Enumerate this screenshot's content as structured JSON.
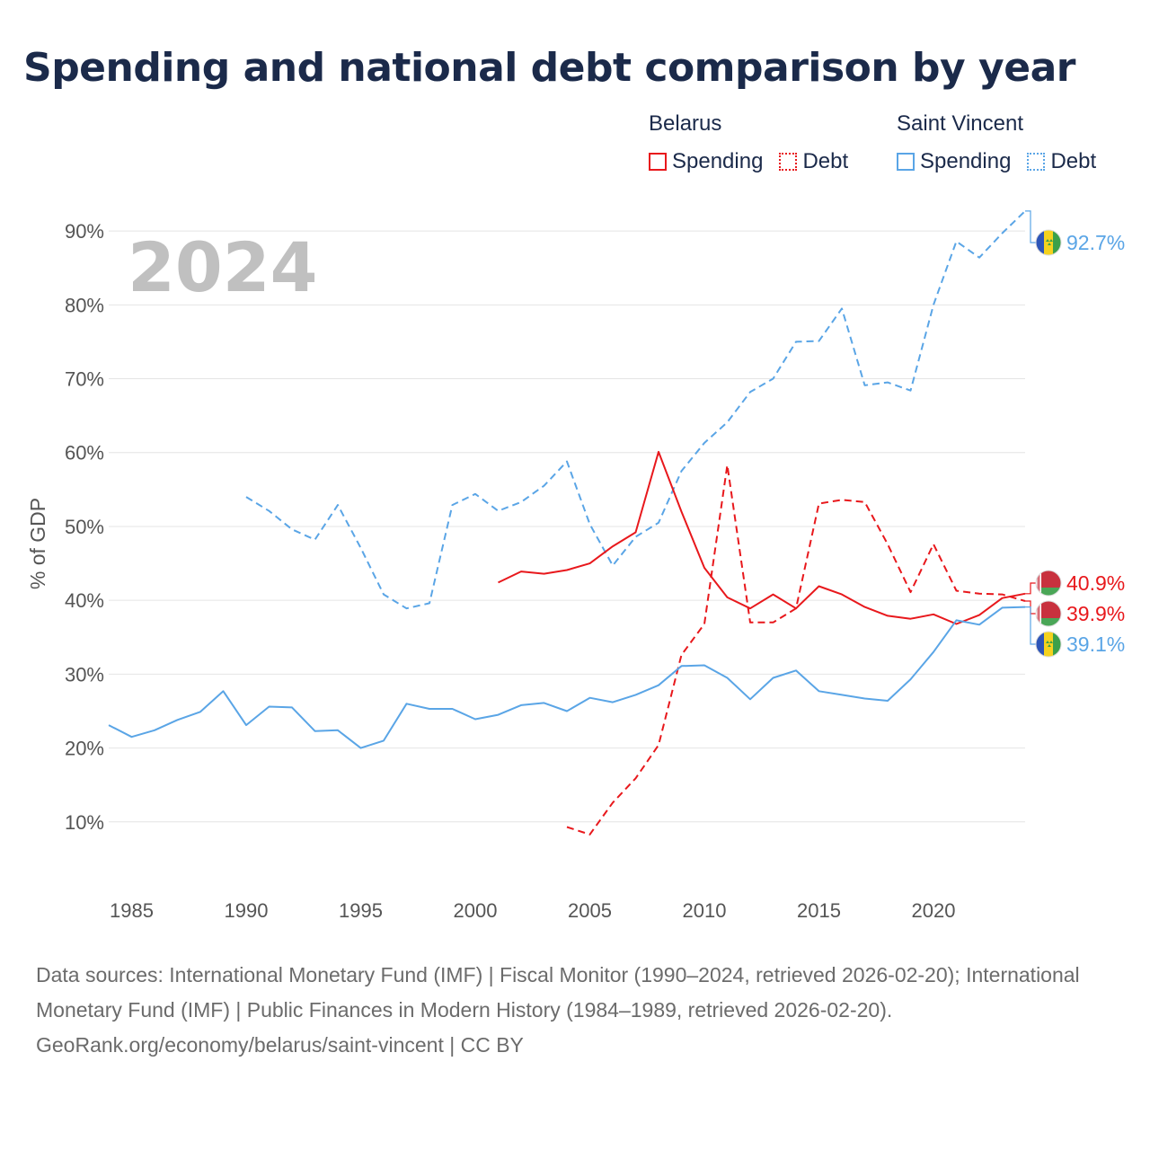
{
  "title": "Spending and national debt comparison by year",
  "legend": {
    "groups": [
      {
        "name": "Belarus",
        "color": "#e8181c",
        "items": [
          {
            "label": "Spending",
            "style": "solid"
          },
          {
            "label": "Debt",
            "style": "dotted"
          }
        ]
      },
      {
        "name": "Saint Vincent",
        "color": "#5aa5e6",
        "items": [
          {
            "label": "Spending",
            "style": "solid"
          },
          {
            "label": "Debt",
            "style": "dotted"
          }
        ]
      }
    ]
  },
  "year_label": "2024",
  "chart_data": {
    "type": "line",
    "title": "Spending and national debt comparison by year",
    "xlabel": "",
    "ylabel": "% of GDP",
    "xlim": [
      1984,
      2024
    ],
    "ylim": [
      0,
      95
    ],
    "x_ticks": [
      1985,
      1990,
      1995,
      2000,
      2005,
      2010,
      2015,
      2020
    ],
    "y_ticks": [
      10,
      20,
      30,
      40,
      50,
      60,
      70,
      80,
      90
    ],
    "y_tick_labels": [
      "10%",
      "20%",
      "30%",
      "40%",
      "50%",
      "60%",
      "70%",
      "80%",
      "90%"
    ],
    "series": [
      {
        "name": "Saint Vincent Debt",
        "country": "Saint Vincent",
        "measure": "Debt",
        "color": "#5aa5e6",
        "dash": true,
        "end_label": "92.7%",
        "flag": "saint-vincent",
        "x": [
          1990,
          1991,
          1992,
          1993,
          1994,
          1995,
          1996,
          1997,
          1998,
          1999,
          2000,
          2001,
          2002,
          2003,
          2004,
          2005,
          2006,
          2007,
          2008,
          2009,
          2010,
          2011,
          2012,
          2013,
          2014,
          2015,
          2016,
          2017,
          2018,
          2019,
          2020,
          2021,
          2022,
          2023,
          2024
        ],
        "values": [
          54.0,
          52.1,
          49.6,
          48.2,
          52.9,
          47.1,
          40.8,
          38.9,
          39.6,
          52.9,
          54.4,
          52.1,
          53.3,
          55.5,
          58.8,
          50.3,
          44.7,
          48.6,
          50.5,
          57.5,
          61.3,
          64.1,
          68.2,
          70.0,
          75.0,
          75.1,
          79.5,
          69.1,
          69.5,
          68.4,
          80.0,
          88.6,
          86.4,
          89.7,
          92.7
        ]
      },
      {
        "name": "Belarus Spending",
        "country": "Belarus",
        "measure": "Spending",
        "color": "#e8181c",
        "dash": false,
        "end_label": "40.9%",
        "flag": "belarus",
        "x": [
          2001,
          2002,
          2003,
          2004,
          2005,
          2006,
          2007,
          2008,
          2009,
          2010,
          2011,
          2012,
          2013,
          2014,
          2015,
          2016,
          2017,
          2018,
          2019,
          2020,
          2021,
          2022,
          2023,
          2024
        ],
        "values": [
          42.4,
          43.9,
          43.6,
          44.1,
          45.0,
          47.3,
          49.2,
          60.1,
          52.0,
          44.4,
          40.4,
          38.9,
          40.8,
          38.9,
          41.9,
          40.8,
          39.1,
          37.9,
          37.5,
          38.1,
          36.8,
          38.0,
          40.3,
          40.9
        ]
      },
      {
        "name": "Belarus Debt",
        "country": "Belarus",
        "measure": "Debt",
        "color": "#e8181c",
        "dash": true,
        "end_label": "39.9%",
        "flag": "belarus",
        "x": [
          2004,
          2005,
          2006,
          2007,
          2008,
          2009,
          2010,
          2011,
          2012,
          2013,
          2014,
          2015,
          2016,
          2017,
          2018,
          2019,
          2020,
          2021,
          2022,
          2023,
          2024
        ],
        "values": [
          9.3,
          8.3,
          12.6,
          15.9,
          20.4,
          32.6,
          36.8,
          58.3,
          37.0,
          37.0,
          38.9,
          53.1,
          53.6,
          53.3,
          47.6,
          41.1,
          47.6,
          41.3,
          40.9,
          40.8,
          39.9
        ]
      },
      {
        "name": "Saint Vincent Spending",
        "country": "Saint Vincent",
        "measure": "Spending",
        "color": "#5aa5e6",
        "dash": false,
        "end_label": "39.1%",
        "flag": "saint-vincent",
        "x": [
          1984,
          1985,
          1986,
          1987,
          1988,
          1989,
          1990,
          1991,
          1992,
          1993,
          1994,
          1995,
          1996,
          1997,
          1998,
          1999,
          2000,
          2001,
          2002,
          2003,
          2004,
          2005,
          2006,
          2007,
          2008,
          2009,
          2010,
          2011,
          2012,
          2013,
          2014,
          2015,
          2016,
          2017,
          2018,
          2019,
          2020,
          2021,
          2022,
          2023,
          2024
        ],
        "values": [
          23.1,
          21.5,
          22.4,
          23.8,
          24.9,
          27.7,
          23.1,
          25.6,
          25.5,
          22.3,
          22.4,
          20.0,
          21.0,
          26.0,
          25.3,
          25.3,
          23.9,
          24.5,
          25.8,
          26.1,
          25.0,
          26.8,
          26.2,
          27.2,
          28.5,
          31.1,
          31.2,
          29.5,
          26.6,
          29.5,
          30.5,
          27.7,
          27.2,
          26.7,
          26.4,
          29.3,
          33.0,
          37.3,
          36.7,
          39.0,
          39.1
        ]
      }
    ]
  },
  "footer": {
    "sources": "Data sources: International Monetary Fund (IMF) | Fiscal Monitor (1990–2024, retrieved 2026-02-20); International Monetary Fund (IMF) | Public Finances in Modern History (1984–1989, retrieved 2026-02-20).",
    "credit": "GeoRank.org/economy/belarus/saint-vincent | CC BY"
  }
}
